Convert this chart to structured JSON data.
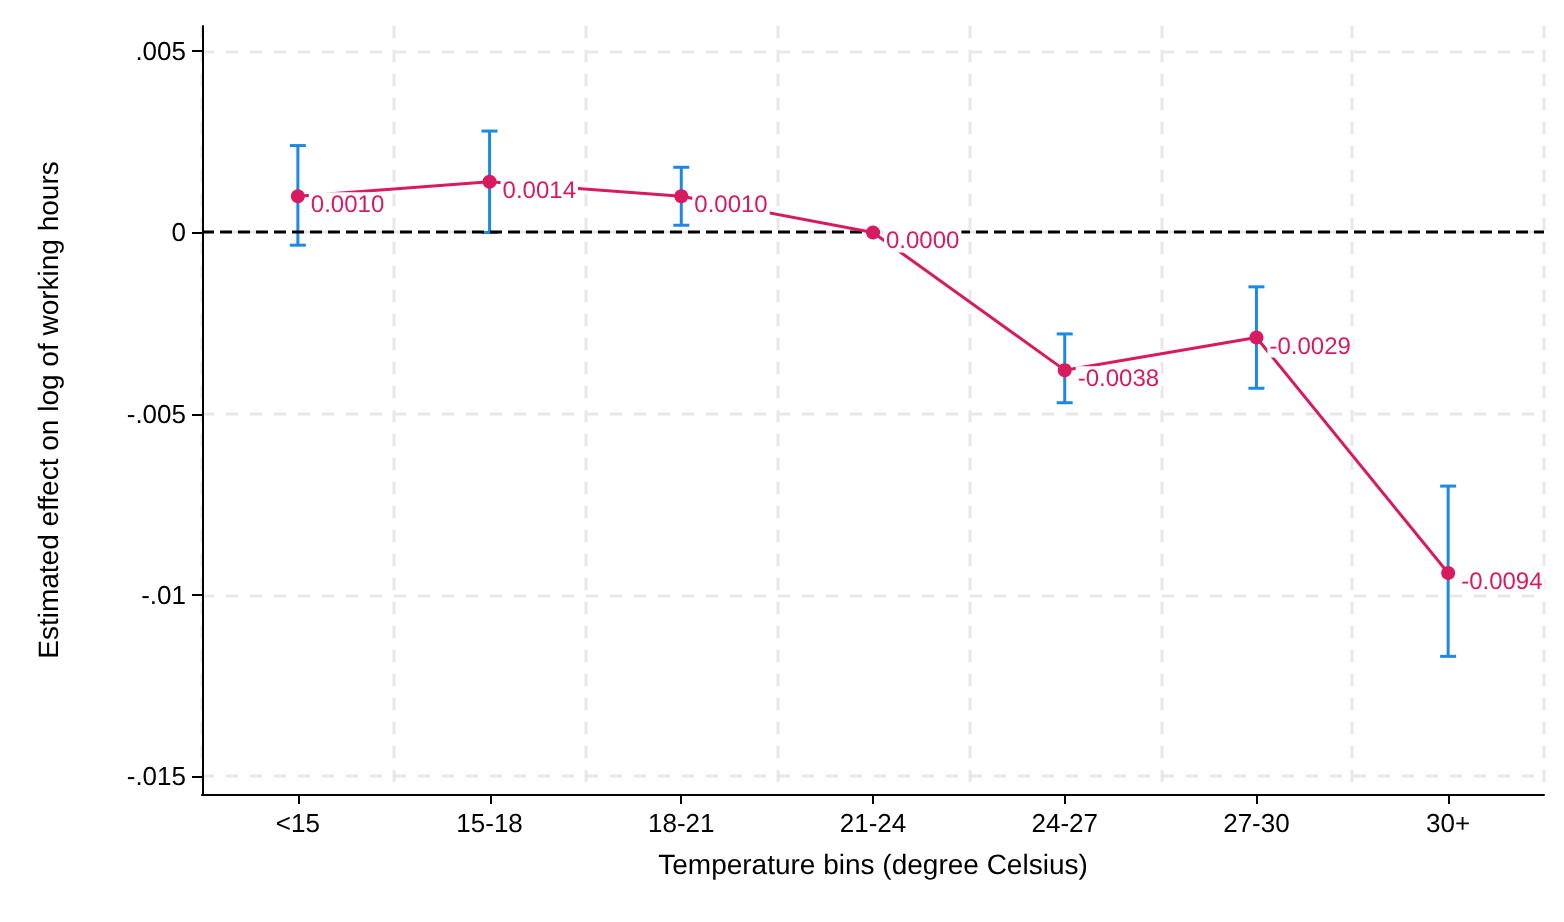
{
  "chart_data": {
    "type": "line",
    "xlabel": "Temperature bins (degree Celsius)",
    "ylabel": "Estimated effect on log of working hours",
    "categories": [
      "<15",
      "15-18",
      "18-21",
      "21-24",
      "24-27",
      "27-30",
      "30+"
    ],
    "series": [
      {
        "color": "#d81b60",
        "values": [
          0.001,
          0.0014,
          0.001,
          0.0,
          -0.0038,
          -0.0029,
          -0.0094
        ],
        "value_labels": [
          "0.0010",
          "0.0014",
          "0.0010",
          "0.0000",
          "-0.0038",
          "-0.0029",
          "-0.0094"
        ],
        "errors": [
          [
            -0.00035,
            0.0024
          ],
          [
            0.0,
            0.0028
          ],
          [
            0.0002,
            0.0018
          ],
          null,
          [
            -0.0047,
            -0.0028
          ],
          [
            -0.0043,
            -0.0015
          ],
          [
            -0.0117,
            -0.007
          ]
        ]
      }
    ],
    "ylim": [
      -0.0155,
      0.0057
    ],
    "yticks": [
      {
        "value": 0.005,
        "label": ".005"
      },
      {
        "value": 0,
        "label": "0"
      },
      {
        "value": -0.005,
        "label": "-.005"
      },
      {
        "value": -0.01,
        "label": "-.01"
      },
      {
        "value": -0.015,
        "label": "-.015"
      }
    ],
    "ref_lines": [
      {
        "axis": "y",
        "value": 0,
        "color": "#000000",
        "line_style": "dashed"
      }
    ],
    "grid": true,
    "marker": "circle",
    "line_style": "solid"
  }
}
